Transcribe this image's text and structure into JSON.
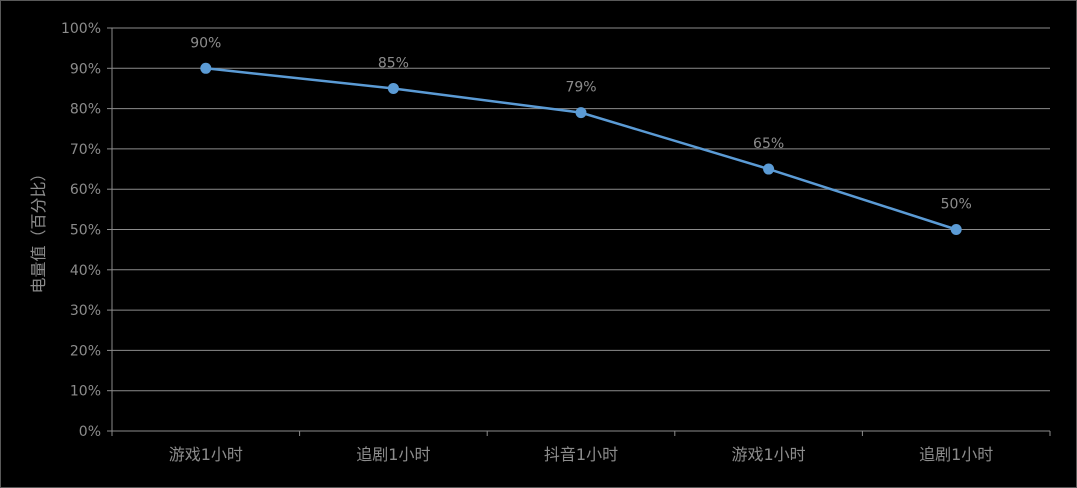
{
  "chart_data": {
    "type": "line",
    "title": "",
    "xlabel": "",
    "ylabel": "电量值（百分比）",
    "categories": [
      "游戏1小时",
      "追剧1小时",
      "抖音1小时",
      "游戏1小时",
      "追剧1小时"
    ],
    "series": [
      {
        "values": [
          90,
          85,
          79,
          65,
          50
        ],
        "labels": [
          "90%",
          "85%",
          "79%",
          "65%",
          "50%"
        ]
      }
    ],
    "yticks": [
      "0%",
      "10%",
      "20%",
      "30%",
      "40%",
      "50%",
      "60%",
      "70%",
      "80%",
      "90%",
      "100%"
    ],
    "ylim": [
      0,
      100
    ],
    "grid": true,
    "legend": "none",
    "colors": {
      "background": "#000000",
      "line": "#5b9bd5",
      "grid": "#8c8c8c",
      "text": "#8c8c8c",
      "border": "#595959"
    }
  }
}
